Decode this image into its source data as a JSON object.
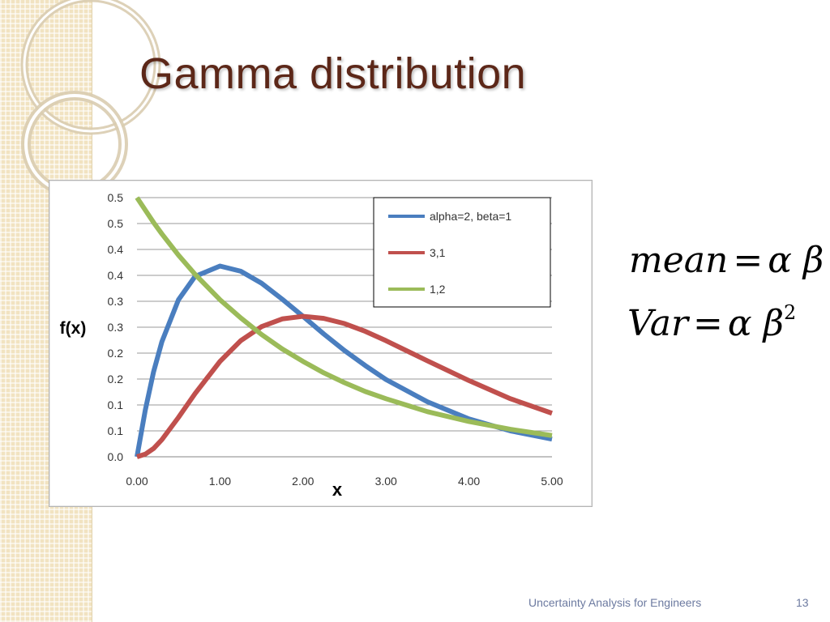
{
  "slide": {
    "title": "Gamma distribution",
    "footer": "Uncertainty Analysis for Engineers",
    "page_number": "13"
  },
  "formulas": {
    "mean": {
      "lhs": "mean",
      "eq": "=",
      "rhs": "α β"
    },
    "var": {
      "lhs": "Var",
      "eq": "=",
      "rhs": "α β",
      "exponent": "2"
    }
  },
  "colors": {
    "title": "#5c2718",
    "side_band": "#f1e3c1",
    "footer": "#6c7aa0"
  },
  "chart_data": {
    "type": "line",
    "xlabel": "x",
    "ylabel": "f(x)",
    "xlim": [
      0,
      5
    ],
    "ylim": [
      0,
      0.5
    ],
    "x_ticks": [
      0,
      1,
      2,
      3,
      4,
      5
    ],
    "x_tick_labels": [
      "0.00",
      "1.00",
      "2.00",
      "3.00",
      "4.00",
      "5.00"
    ],
    "y_ticks": [
      0,
      0.05,
      0.1,
      0.15,
      0.2,
      0.25,
      0.3,
      0.35,
      0.4,
      0.45,
      0.5
    ],
    "y_tick_labels": [
      "0.0",
      "0.1",
      "0.1",
      "0.2",
      "0.2",
      "0.3",
      "0.3",
      "0.4",
      "0.4",
      "0.5",
      "0.5"
    ],
    "grid": true,
    "legend_position": "top-right",
    "x": [
      0,
      0.1,
      0.2,
      0.3,
      0.5,
      0.7,
      1.0,
      1.25,
      1.5,
      1.75,
      2.0,
      2.25,
      2.5,
      2.75,
      3.0,
      3.5,
      4.0,
      4.5,
      5.0
    ],
    "series": [
      {
        "name": "alpha=2, beta=1",
        "color": "#4a7ebf",
        "values": [
          0,
          0.09,
          0.164,
          0.222,
          0.303,
          0.348,
          0.368,
          0.358,
          0.335,
          0.304,
          0.271,
          0.237,
          0.205,
          0.176,
          0.149,
          0.106,
          0.073,
          0.05,
          0.034
        ]
      },
      {
        "name": "3,1",
        "color": "#c0504d",
        "values": [
          0,
          0.005,
          0.016,
          0.033,
          0.076,
          0.122,
          0.184,
          0.224,
          0.251,
          0.266,
          0.271,
          0.267,
          0.257,
          0.242,
          0.224,
          0.185,
          0.147,
          0.112,
          0.084
        ]
      },
      {
        "name": "1,2",
        "color": "#9bbb59",
        "values": [
          0.5,
          0.476,
          0.452,
          0.43,
          0.389,
          0.352,
          0.303,
          0.268,
          0.236,
          0.208,
          0.184,
          0.162,
          0.143,
          0.126,
          0.112,
          0.087,
          0.068,
          0.053,
          0.041
        ]
      }
    ]
  }
}
